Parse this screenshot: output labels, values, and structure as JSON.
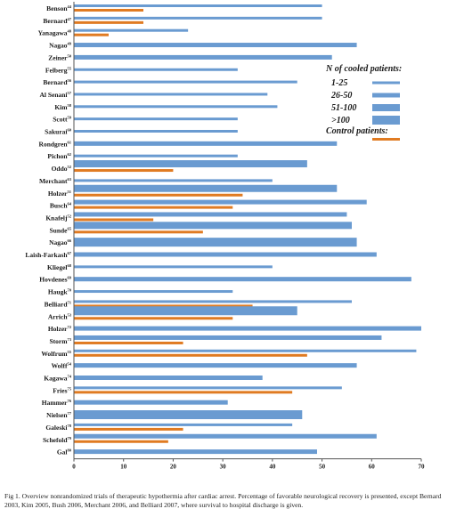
{
  "chart_data": {
    "type": "bar",
    "orientation": "horizontal",
    "xlim": [
      0,
      70
    ],
    "x_ticks": [
      "0",
      "10",
      "20",
      "30",
      "40",
      "50",
      "60",
      "70"
    ],
    "grid": false,
    "legend_position": "right",
    "legend": {
      "title": "N of cooled patients:",
      "cooled_entries": [
        {
          "label": "1-25",
          "bar_height": 3
        },
        {
          "label": "26-50",
          "bar_height": 5
        },
        {
          "label": "51-100",
          "bar_height": 8
        },
        {
          "label": ">100",
          "bar_height": 10
        }
      ],
      "control_label": "Control patients:"
    },
    "colors": {
      "cooled": "#6a9bd1",
      "control": "#e07b22"
    },
    "studies": [
      {
        "name": "Benson",
        "ref": "44",
        "cooled": 50,
        "control": 14,
        "size_group": "1-25"
      },
      {
        "name": "Bernard",
        "ref": "47",
        "cooled": 50,
        "control": 14,
        "size_group": "1-25"
      },
      {
        "name": "Yanagawa",
        "ref": "48",
        "cooled": 23,
        "control": 7,
        "size_group": "1-25"
      },
      {
        "name": "Nagao",
        "ref": "49",
        "cooled": 57,
        "control": null,
        "size_group": "26-50"
      },
      {
        "name": "Zeiner",
        "ref": "50",
        "cooled": 52,
        "control": null,
        "size_group": "26-50"
      },
      {
        "name": "Felberg",
        "ref": "55",
        "cooled": 33,
        "control": null,
        "size_group": "1-25"
      },
      {
        "name": "Bernard",
        "ref": "56",
        "cooled": 45,
        "control": null,
        "size_group": "1-25"
      },
      {
        "name": "Al Senani",
        "ref": "57",
        "cooled": 39,
        "control": null,
        "size_group": "1-25"
      },
      {
        "name": "Kim",
        "ref": "58",
        "cooled": 41,
        "control": null,
        "size_group": "1-25"
      },
      {
        "name": "Scott",
        "ref": "59",
        "cooled": 33,
        "control": null,
        "size_group": "1-25"
      },
      {
        "name": "Sakurai",
        "ref": "60",
        "cooled": 33,
        "control": null,
        "size_group": "1-25"
      },
      {
        "name": "Rondgren",
        "ref": "61",
        "cooled": 53,
        "control": null,
        "size_group": "26-50"
      },
      {
        "name": "Pichon",
        "ref": "62",
        "cooled": 33,
        "control": null,
        "size_group": "1-25"
      },
      {
        "name": "Oddo",
        "ref": "52",
        "cooled": 47,
        "control": 20,
        "size_group": "51-100"
      },
      {
        "name": "Merchant",
        "ref": "63",
        "cooled": 40,
        "control": null,
        "size_group": "1-25"
      },
      {
        "name": "Holzer",
        "ref": "51",
        "cooled": 53,
        "control": 34,
        "size_group": "51-100"
      },
      {
        "name": "Busch",
        "ref": "64",
        "cooled": 59,
        "control": 32,
        "size_group": "26-50"
      },
      {
        "name": "Knafelj",
        "ref": "52",
        "cooled": 55,
        "control": 16,
        "size_group": "26-50"
      },
      {
        "name": "Sunde",
        "ref": "65",
        "cooled": 56,
        "control": 26,
        "size_group": "51-100"
      },
      {
        "name": "Nagao",
        "ref": "66",
        "cooled": 57,
        "control": null,
        "size_group": ">100"
      },
      {
        "name": "Laish-Farkash",
        "ref": "67",
        "cooled": 61,
        "control": null,
        "size_group": "26-50"
      },
      {
        "name": "Kliegel",
        "ref": "68",
        "cooled": 40,
        "control": null,
        "size_group": "1-25"
      },
      {
        "name": "Hovdenes",
        "ref": "69",
        "cooled": 68,
        "control": null,
        "size_group": "26-50"
      },
      {
        "name": "Haugk",
        "ref": "70",
        "cooled": 32,
        "control": null,
        "size_group": "1-25"
      },
      {
        "name": "Belliard",
        "ref": "71",
        "cooled": 56,
        "control": 36,
        "size_group": "1-25"
      },
      {
        "name": "Arrich",
        "ref": "53",
        "cooled": 45,
        "control": 32,
        "size_group": ">100"
      },
      {
        "name": "Holzer",
        "ref": "72",
        "cooled": 70,
        "control": null,
        "size_group": "26-50"
      },
      {
        "name": "Storm",
        "ref": "73",
        "cooled": 62,
        "control": 22,
        "size_group": "26-50"
      },
      {
        "name": "Wolfrum",
        "ref": "55",
        "cooled": 69,
        "control": 47,
        "size_group": "1-25"
      },
      {
        "name": "Wolff",
        "ref": "54",
        "cooled": 57,
        "control": null,
        "size_group": "26-50"
      },
      {
        "name": "Kagawa",
        "ref": "74",
        "cooled": 38,
        "control": null,
        "size_group": "26-50"
      },
      {
        "name": "Fries",
        "ref": "75",
        "cooled": 54,
        "control": 44,
        "size_group": "1-25"
      },
      {
        "name": "Hammer",
        "ref": "76",
        "cooled": 31,
        "control": null,
        "size_group": "26-50"
      },
      {
        "name": "Nielsen",
        "ref": "77",
        "cooled": 46,
        "control": null,
        "size_group": ">100"
      },
      {
        "name": "Galeski",
        "ref": "78",
        "cooled": 44,
        "control": 22,
        "size_group": "1-25"
      },
      {
        "name": "Schefold",
        "ref": "79",
        "cooled": 61,
        "control": 19,
        "size_group": "26-50"
      },
      {
        "name": "Gal",
        "ref": "80",
        "cooled": 49,
        "control": null,
        "size_group": "26-50"
      }
    ]
  },
  "caption": "Fig 1. Overview nonrandomized trials of therapeutic hypothermia after cardiac arrest. Percentage of favorable neurological recovery is presented, except Bernard 2003, Kim 2005, Bush 2006, Merchant 2006, and Belliard 2007, where survival to hospital discharge is given."
}
